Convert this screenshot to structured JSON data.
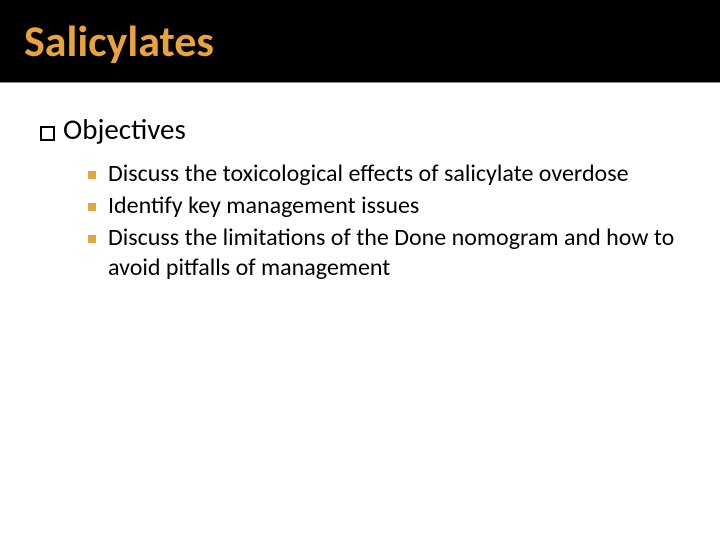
{
  "slide": {
    "title": "Salicylates",
    "title_color": "#e8a33d",
    "title_bg": "#000000",
    "heading_marker": "hollow-square",
    "heading": "Objectives",
    "bullet_marker_color": "#e8a33d",
    "bullets": [
      "Discuss the toxicological effects of salicylate overdose",
      "Identify key management issues",
      "Discuss the limitations of the Done nomogram and how to avoid pitfalls of management"
    ],
    "body_fontsize_pt": 24,
    "heading_fontsize_pt": 29,
    "title_fontsize_pt": 44,
    "background_color": "#ffffff"
  }
}
